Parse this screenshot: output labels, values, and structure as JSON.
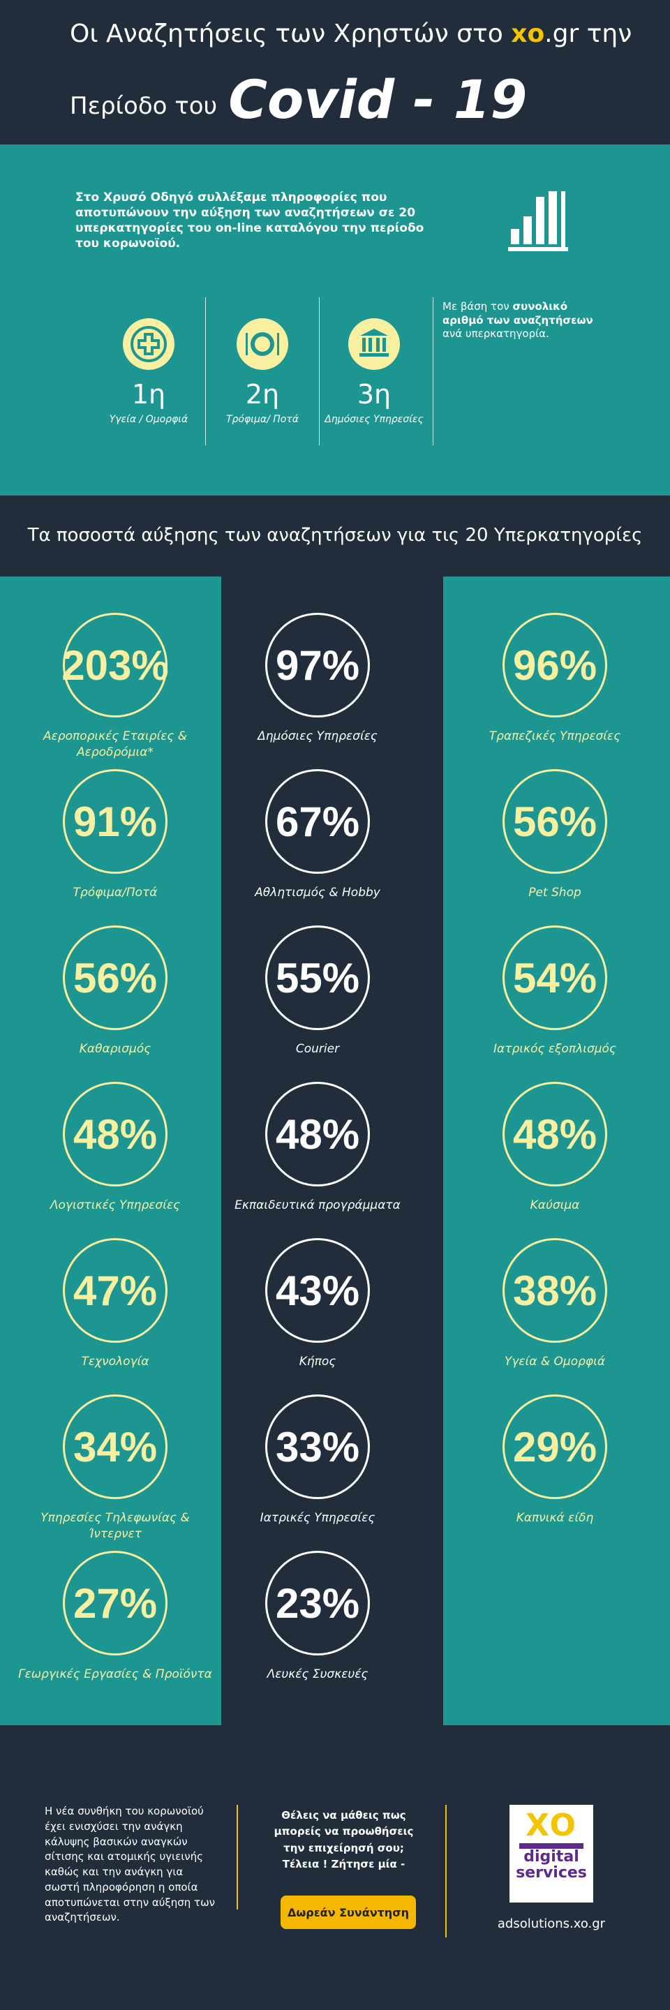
{
  "header": {
    "title_start": "Οι Αναζητήσεις των Χρηστών στο",
    "brand": "xo",
    "title_end": ".gr την",
    "title_line2": "Περίοδο του",
    "title_highlight": "Covid - 19"
  },
  "intro": {
    "text": "Στο Χρυσό Οδηγό συλλέξαμε πληροφορίες που αποτυπώνουν την αύξηση των αναζητήσεων σε 20 υπερκατηγορίες του on-line καταλόγου την περίοδο του κορωνοϊού.",
    "top": [
      {
        "rank": "1η",
        "label": "Υγεία / Ομορφιά"
      },
      {
        "rank": "2η",
        "label": "Τρόφιμα/ Ποτά"
      },
      {
        "rank": "3η",
        "label": "Δημόσιες Υπηρεσίες"
      }
    ],
    "note_start": "Με βάση τον",
    "note_bold": "συνολικό αριθμό των αναζητήσεων",
    "note_end": "ανά υπερκατηγορία."
  },
  "section_title": "Τα ποσοστά αύξησης των αναζητήσεων για τις 20 Υπερκατηγορίες",
  "grid": {
    "columns": [
      [
        {
          "value": "203%",
          "label": "Αεροπορικές Εταιρίες & Αεροδρόμια*"
        },
        {
          "value": "91%",
          "label": "Τρόφιμα/Ποτά"
        },
        {
          "value": "56%",
          "label": "Καθαρισμός"
        },
        {
          "value": "48%",
          "label": "Λογιστικές Υπηρεσίες"
        },
        {
          "value": "47%",
          "label": "Τεχνολογία"
        },
        {
          "value": "34%",
          "label": "Υπηρεσίες Τηλεφωνίας & Ίντερνετ"
        },
        {
          "value": "27%",
          "label": "Γεωργικές Εργασίες & Προϊόντα"
        }
      ],
      [
        {
          "value": "97%",
          "label": "Δημόσιες Υπηρεσίες"
        },
        {
          "value": "67%",
          "label": "Αθλητισμός & Hobby"
        },
        {
          "value": "55%",
          "label": "Courier"
        },
        {
          "value": "48%",
          "label": "Εκπαιδευτικά προγράμματα"
        },
        {
          "value": "43%",
          "label": "Κήπος"
        },
        {
          "value": "33%",
          "label": "Ιατρικές Υπηρεσίες"
        },
        {
          "value": "23%",
          "label": "Λευκές Συσκευές"
        }
      ],
      [
        {
          "value": "96%",
          "label": "Τραπεζικές Υπηρεσίες"
        },
        {
          "value": "56%",
          "label": "Pet Shop"
        },
        {
          "value": "54%",
          "label": "Ιατρικός εξοπλισμός"
        },
        {
          "value": "48%",
          "label": "Καύσιμα"
        },
        {
          "value": "38%",
          "label": "Υγεία & Ομορφιά"
        },
        {
          "value": "29%",
          "label": "Καπνικά είδη"
        }
      ]
    ]
  },
  "footer": {
    "text": "Η νέα συνθήκη του κορωνοϊού έχει ενισχύσει την ανάγκη κάλυψης βασικών αναγκών σίτισης και ατομικής υγιεινής καθώς και την ανάγκη για σωστή πληροφόρηση η οποία αποτυπώνεται στην αύξηση των αναζητήσεων.",
    "cta": "Θέλεις να μάθεις πως μπορείς να προωθήσεις την επιχείρησή σου; Τέλεια ! Ζήτησε μία -",
    "button": "Δωρεάν Συνάντηση",
    "logo_mark": "XO",
    "logo_line1": "digital",
    "logo_line2": "services",
    "url": "adsolutions.xo.gr"
  }
}
